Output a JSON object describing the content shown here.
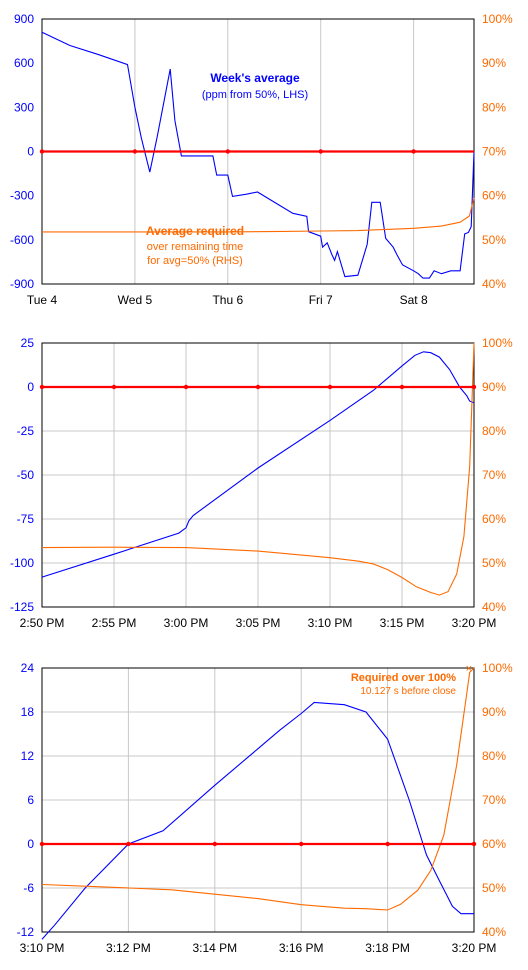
{
  "colors": {
    "left_axis": "#0000ff",
    "right_axis": "#ff6a00",
    "series_blue": "#0000ff",
    "series_orange": "#ff6a00",
    "zero_line": "#ff0000",
    "grid": "#c8c8c8",
    "frame": "#000000"
  },
  "chart_data": [
    {
      "type": "line",
      "grid": "vertical",
      "x_axis": {
        "kind": "category-time",
        "ticks": [
          {
            "x": 0,
            "label": "Tue 4"
          },
          {
            "x": 1,
            "label": "Wed 5"
          },
          {
            "x": 2,
            "label": "Thu 6"
          },
          {
            "x": 3,
            "label": "Fri 7"
          },
          {
            "x": 4,
            "label": "Sat 8"
          }
        ],
        "xlim": [
          0,
          4.65
        ]
      },
      "left_axis": {
        "ylim": [
          -900,
          900
        ],
        "ticks": [
          "900",
          "600",
          "300",
          "0",
          "-300",
          "-600",
          "-900"
        ],
        "tick_values": [
          900,
          600,
          300,
          0,
          -300,
          -600,
          -900
        ]
      },
      "right_axis": {
        "ylim": [
          40,
          100
        ],
        "ticks": [
          "100%",
          "90%",
          "80%",
          "70%",
          "60%",
          "50%",
          "40%"
        ],
        "tick_values": [
          100,
          90,
          80,
          70,
          60,
          50,
          40
        ]
      },
      "zero_line": {
        "y": 0,
        "markers_x": [
          0,
          1,
          2,
          3,
          4
        ]
      },
      "series": [
        {
          "name": "Week's average",
          "axis": "left",
          "x": [
            0,
            0.3,
            0.6,
            0.92,
            1.0,
            1.07,
            1.16,
            1.24,
            1.38,
            1.43,
            1.5,
            1.6,
            1.62,
            1.84,
            1.88,
            2.0,
            2.05,
            2.2,
            2.32,
            2.7,
            2.85,
            2.87,
            3.0,
            3.02,
            3.07,
            3.12,
            3.15,
            3.18,
            3.26,
            3.4,
            3.5,
            3.55,
            3.64,
            3.7,
            3.78,
            3.82,
            3.88,
            4.0,
            4.05,
            4.1,
            4.17,
            4.22,
            4.3,
            4.4,
            4.45,
            4.5,
            4.55,
            4.59,
            4.62,
            4.65
          ],
          "values": [
            810,
            720,
            660,
            590,
            300,
            90,
            -140,
            100,
            560,
            210,
            -30,
            -30,
            -30,
            -30,
            -160,
            -160,
            -305,
            -290,
            -275,
            -420,
            -440,
            -545,
            -575,
            -650,
            -620,
            -700,
            -740,
            -680,
            -850,
            -840,
            -630,
            -345,
            -345,
            -590,
            -650,
            -700,
            -770,
            -810,
            -830,
            -860,
            -860,
            -810,
            -830,
            -810,
            -810,
            -810,
            -560,
            -550,
            -510,
            0
          ]
        },
        {
          "name": "Average required over remaining time for avg=50% (RHS)",
          "axis": "right",
          "x": [
            0,
            1.0,
            2.0,
            2.6,
            3.0,
            3.4,
            4.0,
            4.3,
            4.5,
            4.6,
            4.65
          ],
          "values": [
            51.8,
            51.8,
            51.8,
            51.9,
            52.0,
            52.1,
            52.6,
            53.1,
            54.0,
            55.4,
            59.5
          ]
        }
      ],
      "annotations": [
        {
          "text": "Week's average",
          "color_key": "left_axis",
          "bold": true
        },
        {
          "text": "(ppm from 50%, LHS)",
          "color_key": "left_axis",
          "bold": false
        },
        {
          "text": "Average required",
          "color_key": "right_axis",
          "bold": true
        },
        {
          "text": "over remaining time",
          "color_key": "right_axis",
          "bold": false
        },
        {
          "text": "for avg=50% (RHS)",
          "color_key": "right_axis",
          "bold": false
        }
      ]
    },
    {
      "type": "line",
      "grid": "both",
      "x_axis": {
        "kind": "time-minutes",
        "ticks": [
          {
            "x": 0,
            "label": "2:50 PM"
          },
          {
            "x": 5,
            "label": "2:55 PM"
          },
          {
            "x": 10,
            "label": "3:00 PM"
          },
          {
            "x": 15,
            "label": "3:05 PM"
          },
          {
            "x": 20,
            "label": "3:10 PM"
          },
          {
            "x": 25,
            "label": "3:15 PM"
          },
          {
            "x": 30,
            "label": "3:20 PM"
          }
        ],
        "xlim": [
          0,
          30
        ]
      },
      "left_axis": {
        "ylim": [
          -125,
          25
        ],
        "ticks": [
          "25",
          "0",
          "-25",
          "-50",
          "-75",
          "-100",
          "-125"
        ],
        "tick_values": [
          25,
          0,
          -25,
          -50,
          -75,
          -100,
          -125
        ]
      },
      "right_axis": {
        "ylim": [
          40,
          100
        ],
        "ticks": [
          "100%",
          "90%",
          "80%",
          "70%",
          "60%",
          "50%",
          "40%"
        ],
        "tick_values": [
          100,
          90,
          80,
          70,
          60,
          50,
          40
        ]
      },
      "zero_line": {
        "y": 0,
        "markers_x": [
          0,
          5,
          10,
          15,
          20,
          25,
          30
        ]
      },
      "series": [
        {
          "name": "",
          "axis": "left",
          "x": [
            0,
            5,
            9.5,
            10,
            10.2,
            10.5,
            15,
            20,
            23,
            25,
            25.9,
            26.5,
            27,
            27.6,
            28.3,
            29,
            29.5,
            29.7,
            30
          ],
          "values": [
            -108,
            -95,
            -83,
            -80,
            -76,
            -73,
            -46,
            -19,
            -2,
            12,
            18,
            20,
            19.5,
            17,
            10,
            0,
            -5,
            -8,
            -9
          ]
        },
        {
          "name": "",
          "axis": "right",
          "x": [
            0,
            5,
            10,
            15,
            20,
            22,
            23,
            24,
            25,
            26,
            27,
            27.6,
            28.2,
            28.8,
            29.3,
            29.7,
            30
          ],
          "values": [
            53.5,
            53.6,
            53.5,
            52.7,
            51.2,
            50.4,
            49.8,
            48.5,
            46.7,
            44.6,
            43.3,
            42.7,
            43.5,
            47.5,
            56,
            72,
            100
          ]
        }
      ]
    },
    {
      "type": "line",
      "grid": "both",
      "x_axis": {
        "kind": "time-minutes",
        "ticks": [
          {
            "x": 0,
            "label": "3:10 PM"
          },
          {
            "x": 2,
            "label": "3:12 PM"
          },
          {
            "x": 4,
            "label": "3:14 PM"
          },
          {
            "x": 6,
            "label": "3:16 PM"
          },
          {
            "x": 8,
            "label": "3:18 PM"
          },
          {
            "x": 10,
            "label": "3:20 PM"
          }
        ],
        "xlim": [
          0,
          10
        ]
      },
      "left_axis": {
        "ylim": [
          -12,
          24
        ],
        "ticks": [
          "24",
          "18",
          "12",
          "6",
          "0",
          "-6",
          "-12"
        ],
        "tick_values": [
          24,
          18,
          12,
          6,
          0,
          -6,
          -12
        ]
      },
      "right_axis": {
        "ylim": [
          40,
          100
        ],
        "ticks": [
          "100%",
          "90%",
          "80%",
          "70%",
          "60%",
          "50%",
          "40%"
        ],
        "tick_values": [
          100,
          90,
          80,
          70,
          60,
          50,
          40
        ]
      },
      "zero_line": {
        "y": 0,
        "markers_x": [
          0,
          2,
          4,
          6,
          8,
          10
        ]
      },
      "series": [
        {
          "name": "",
          "axis": "left",
          "x": [
            0,
            0.3,
            1,
            2,
            2.8,
            4,
            5,
            5.5,
            6,
            6.3,
            7,
            7.5,
            8,
            8.5,
            8.9,
            9.2,
            9.5,
            9.7,
            9.9,
            10
          ],
          "values": [
            -13,
            -11,
            -6,
            0,
            1.8,
            8,
            13,
            15.5,
            17.8,
            19.3,
            19,
            18,
            14.3,
            6,
            -1.5,
            -5,
            -8.5,
            -9.5,
            -9.5,
            -9.5
          ]
        },
        {
          "name": "",
          "axis": "right",
          "x": [
            0,
            1,
            2,
            3,
            4,
            5,
            6,
            7,
            7.5,
            8,
            8.3,
            8.7,
            9,
            9.3,
            9.6,
            9.8,
            9.9,
            10
          ],
          "values": [
            50.8,
            50.4,
            50.0,
            49.6,
            48.6,
            47.6,
            46.2,
            45.4,
            45.3,
            45.0,
            46.3,
            49.5,
            54,
            62,
            78,
            92,
            99,
            100
          ]
        }
      ],
      "marker": {
        "x": 9.88,
        "y": 100,
        "symbol": "×"
      },
      "annotations": [
        {
          "text": "Required over 100%",
          "color_key": "right_axis",
          "bold": true
        },
        {
          "text": "10.127 s before close",
          "color_key": "right_axis",
          "bold": false
        }
      ]
    }
  ]
}
